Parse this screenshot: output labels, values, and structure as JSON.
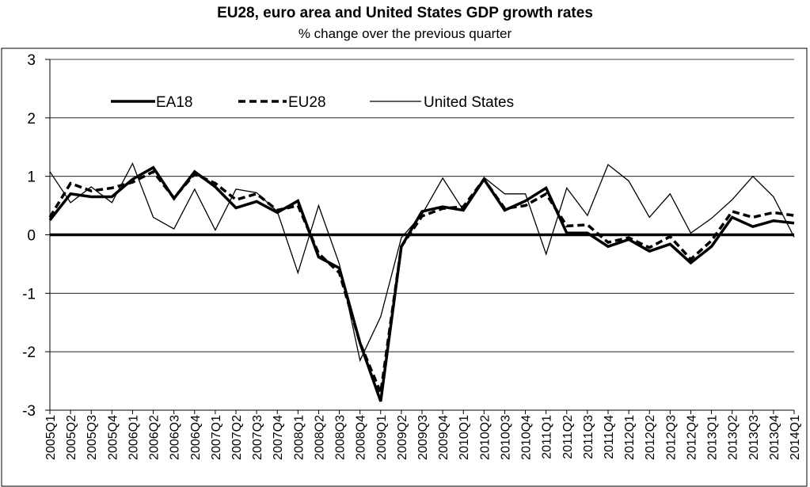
{
  "chart_data": {
    "type": "line",
    "title": "EU28, euro area and United States GDP growth rates",
    "subtitle": "% change over the previous quarter",
    "xlabel": "",
    "ylabel": "",
    "ylim": [
      -3,
      3
    ],
    "yticks": [
      3,
      2,
      1,
      0,
      -1,
      -2,
      -3
    ],
    "grid": true,
    "legend_position": "top-left",
    "categories": [
      "2005Q1",
      "2005Q2",
      "2005Q3",
      "2005Q4",
      "2006Q1",
      "2006Q2",
      "2006Q3",
      "2006Q4",
      "2007Q1",
      "2007Q2",
      "2007Q3",
      "2007Q4",
      "2008Q1",
      "2008Q2",
      "2008Q3",
      "2008Q4",
      "2009Q1",
      "2009Q2",
      "2009Q3",
      "2009Q4",
      "2010Q1",
      "2010Q2",
      "2010Q3",
      "2010Q4",
      "2011Q1",
      "2011Q2",
      "2011Q3",
      "2011Q4",
      "2012Q1",
      "2012Q2",
      "2012Q3",
      "2012Q4",
      "2013Q1",
      "2013Q2",
      "2013Q3",
      "2013Q4",
      "2014Q1"
    ],
    "tick_categories": [
      "2005Q1",
      "2005Q2",
      "2005Q3",
      "2005Q4",
      "2006Q1",
      "2006Q2",
      "2006Q3",
      "2006Q4",
      "2007Q1",
      "2007Q2",
      "2007Q3",
      "2007Q4",
      "2008Q1",
      "2008Q2",
      "2008Q3",
      "2008Q4",
      "2009Q1",
      "2009Q2",
      "2009Q3",
      "2009Q4",
      "2010Q1",
      "2010Q2",
      "2010Q3",
      "2010Q4",
      "2011Q1",
      "2011Q2",
      "2011Q3",
      "2011Q4",
      "2012Q1",
      "2012Q2",
      "2012Q3",
      "2012Q4",
      "2013Q1",
      "2013Q2",
      "2013Q3",
      "2013Q4",
      "2014Q1"
    ],
    "series": [
      {
        "name": "EA18",
        "style": "thick",
        "color": "#000000",
        "values": [
          0.25,
          0.7,
          0.65,
          0.65,
          0.95,
          1.15,
          0.62,
          1.08,
          0.82,
          0.46,
          0.57,
          0.38,
          0.58,
          -0.38,
          -0.57,
          -1.85,
          -2.85,
          -0.2,
          0.4,
          0.48,
          0.42,
          0.95,
          0.42,
          0.58,
          0.8,
          0.03,
          0.03,
          -0.2,
          -0.08,
          -0.28,
          -0.16,
          -0.48,
          -0.2,
          0.3,
          0.14,
          0.24,
          0.2
        ]
      },
      {
        "name": "EU28",
        "style": "dashed",
        "color": "#000000",
        "values": [
          0.3,
          0.88,
          0.75,
          0.8,
          0.9,
          1.08,
          0.63,
          1.04,
          0.88,
          0.6,
          0.7,
          0.42,
          0.5,
          -0.32,
          -0.65,
          -1.85,
          -2.7,
          -0.2,
          0.32,
          0.45,
          0.48,
          0.95,
          0.45,
          0.5,
          0.7,
          0.15,
          0.17,
          -0.13,
          -0.05,
          -0.22,
          -0.03,
          -0.42,
          -0.1,
          0.4,
          0.3,
          0.38,
          0.33
        ]
      },
      {
        "name": "United States",
        "style": "thin",
        "color": "#000000",
        "values": [
          1.08,
          0.55,
          0.82,
          0.55,
          1.22,
          0.3,
          0.1,
          0.78,
          0.08,
          0.78,
          0.72,
          0.4,
          -0.65,
          0.5,
          -0.5,
          -2.15,
          -1.4,
          -0.05,
          0.35,
          0.97,
          0.42,
          0.98,
          0.7,
          0.7,
          -0.33,
          0.8,
          0.33,
          1.2,
          0.92,
          0.3,
          0.7,
          0.03,
          0.28,
          0.6,
          1.0,
          0.65,
          -0.04
        ]
      }
    ]
  }
}
